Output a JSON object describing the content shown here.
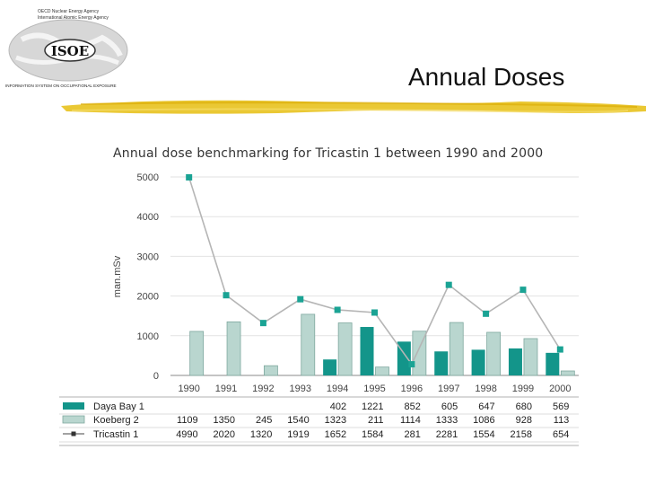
{
  "header": {
    "logo_line1": "OECD Nuclear Energy Agency",
    "logo_line2": "International Atomic Energy Agency",
    "logo_text": "ISOE",
    "logo_caption": "INFORMATION SYSTEM ON OCCUPATIONAL EXPOSURE",
    "slide_title": "Annual Doses"
  },
  "colors": {
    "daya_bay": "#13958a",
    "koeberg": "#b9d6cf",
    "koeberg_stroke": "#7fa89f",
    "tricastin_line": "#b5b5b5",
    "tricastin_marker": "#1aa394",
    "brush": "#e8c21e"
  },
  "chart_data": {
    "type": "bar",
    "title": "Annual dose benchmarking for Tricastin 1 between 1990 and 2000",
    "ylabel": "man.mSv",
    "xlabel": "",
    "ylim": [
      0,
      5000
    ],
    "yticks": [
      "5000",
      "4000",
      "3000",
      "2000",
      "1000",
      "0"
    ],
    "ytick_values": [
      5000,
      4000,
      3000,
      2000,
      1000,
      0
    ],
    "categories": [
      "1990",
      "1991",
      "1992",
      "1993",
      "1994",
      "1995",
      "1996",
      "1997",
      "1998",
      "1999",
      "2000"
    ],
    "series": [
      {
        "name": "Daya Bay 1",
        "kind": "bar",
        "color_key": "daya_bay",
        "values": [
          null,
          null,
          null,
          null,
          402,
          1221,
          852,
          605,
          647,
          680,
          569
        ],
        "labels": [
          "",
          "",
          "",
          "",
          "402",
          "1221",
          "852",
          "605",
          "647",
          "680",
          "569"
        ]
      },
      {
        "name": "Koeberg 2",
        "kind": "bar",
        "color_key": "koeberg",
        "values": [
          1109,
          1350,
          245,
          1540,
          1323,
          211,
          1114,
          1333,
          1086,
          928,
          113
        ],
        "labels": [
          "1109",
          "1350",
          "245",
          "1540",
          "1323",
          "211",
          "1114",
          "1333",
          "1086",
          "928",
          "113"
        ]
      },
      {
        "name": "Tricastin 1",
        "kind": "line",
        "color_key": "tricastin_marker",
        "values": [
          4990,
          2020,
          1320,
          1919,
          1652,
          1584,
          281,
          2281,
          1554,
          2158,
          654
        ],
        "labels": [
          "4990",
          "2020",
          "1320",
          "1919",
          "1652",
          "1584",
          "281",
          "2281",
          "1554",
          "2158",
          "654"
        ]
      }
    ]
  }
}
